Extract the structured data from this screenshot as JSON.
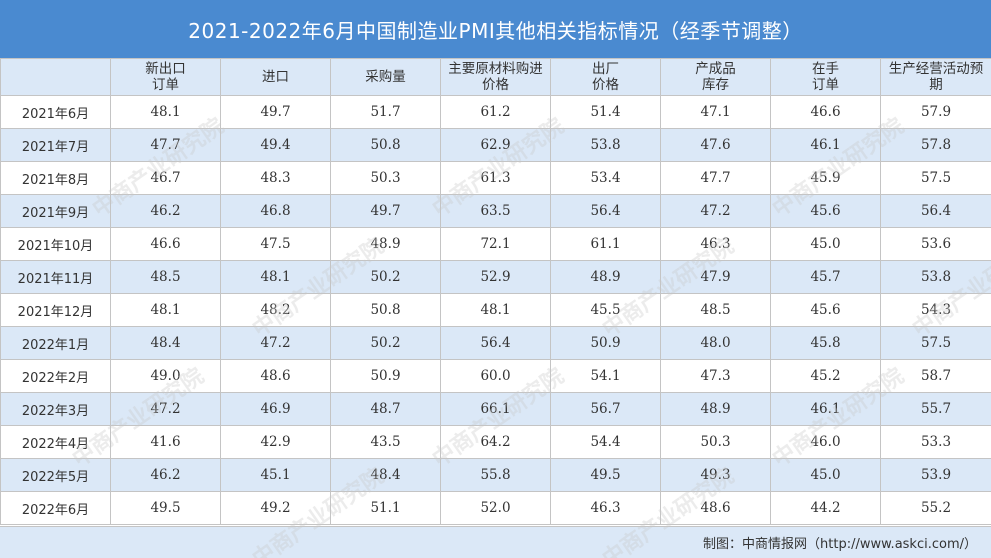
{
  "title": "2021-2022年6月中国制造业PMI其他相关指标情况（经季节调整）",
  "source": "制图：中商情报网（http://www.askci.com/）",
  "watermark": "中商产业研究院",
  "colors": {
    "header_bg": "#4a8ad0",
    "band": "#dbe8f7"
  },
  "chart_data": {
    "type": "table",
    "title": "2021-2022年6月中国制造业PMI其他相关指标情况（经季节调整）",
    "columns": [
      {
        "line1": "",
        "line2": ""
      },
      {
        "line1": "新出口",
        "line2": "订单"
      },
      {
        "line1": "进口",
        "line2": ""
      },
      {
        "line1": "采购量",
        "line2": ""
      },
      {
        "line1": "主要原材料购进",
        "line2": "价格"
      },
      {
        "line1": "出厂",
        "line2": "价格"
      },
      {
        "line1": "产成品",
        "line2": "库存"
      },
      {
        "line1": "在手",
        "line2": "订单"
      },
      {
        "line1": "生产经营活动预",
        "line2": "期"
      }
    ],
    "rows": [
      [
        "2021年6月",
        "48.1",
        "49.7",
        "51.7",
        "61.2",
        "51.4",
        "47.1",
        "46.6",
        "57.9"
      ],
      [
        "2021年7月",
        "47.7",
        "49.4",
        "50.8",
        "62.9",
        "53.8",
        "47.6",
        "46.1",
        "57.8"
      ],
      [
        "2021年8月",
        "46.7",
        "48.3",
        "50.3",
        "61.3",
        "53.4",
        "47.7",
        "45.9",
        "57.5"
      ],
      [
        "2021年9月",
        "46.2",
        "46.8",
        "49.7",
        "63.5",
        "56.4",
        "47.2",
        "45.6",
        "56.4"
      ],
      [
        "2021年10月",
        "46.6",
        "47.5",
        "48.9",
        "72.1",
        "61.1",
        "46.3",
        "45.0",
        "53.6"
      ],
      [
        "2021年11月",
        "48.5",
        "48.1",
        "50.2",
        "52.9",
        "48.9",
        "47.9",
        "45.7",
        "53.8"
      ],
      [
        "2021年12月",
        "48.1",
        "48.2",
        "50.8",
        "48.1",
        "45.5",
        "48.5",
        "45.6",
        "54.3"
      ],
      [
        "2022年1月",
        "48.4",
        "47.2",
        "50.2",
        "56.4",
        "50.9",
        "48.0",
        "45.8",
        "57.5"
      ],
      [
        "2022年2月",
        "49.0",
        "48.6",
        "50.9",
        "60.0",
        "54.1",
        "47.3",
        "45.2",
        "58.7"
      ],
      [
        "2022年3月",
        "47.2",
        "46.9",
        "48.7",
        "66.1",
        "56.7",
        "48.9",
        "46.1",
        "55.7"
      ],
      [
        "2022年4月",
        "41.6",
        "42.9",
        "43.5",
        "64.2",
        "54.4",
        "50.3",
        "46.0",
        "53.3"
      ],
      [
        "2022年5月",
        "46.2",
        "45.1",
        "48.4",
        "55.8",
        "49.5",
        "49.3",
        "45.0",
        "53.9"
      ],
      [
        "2022年6月",
        "49.5",
        "49.2",
        "51.1",
        "52.0",
        "46.3",
        "48.6",
        "44.2",
        "55.2"
      ]
    ]
  }
}
